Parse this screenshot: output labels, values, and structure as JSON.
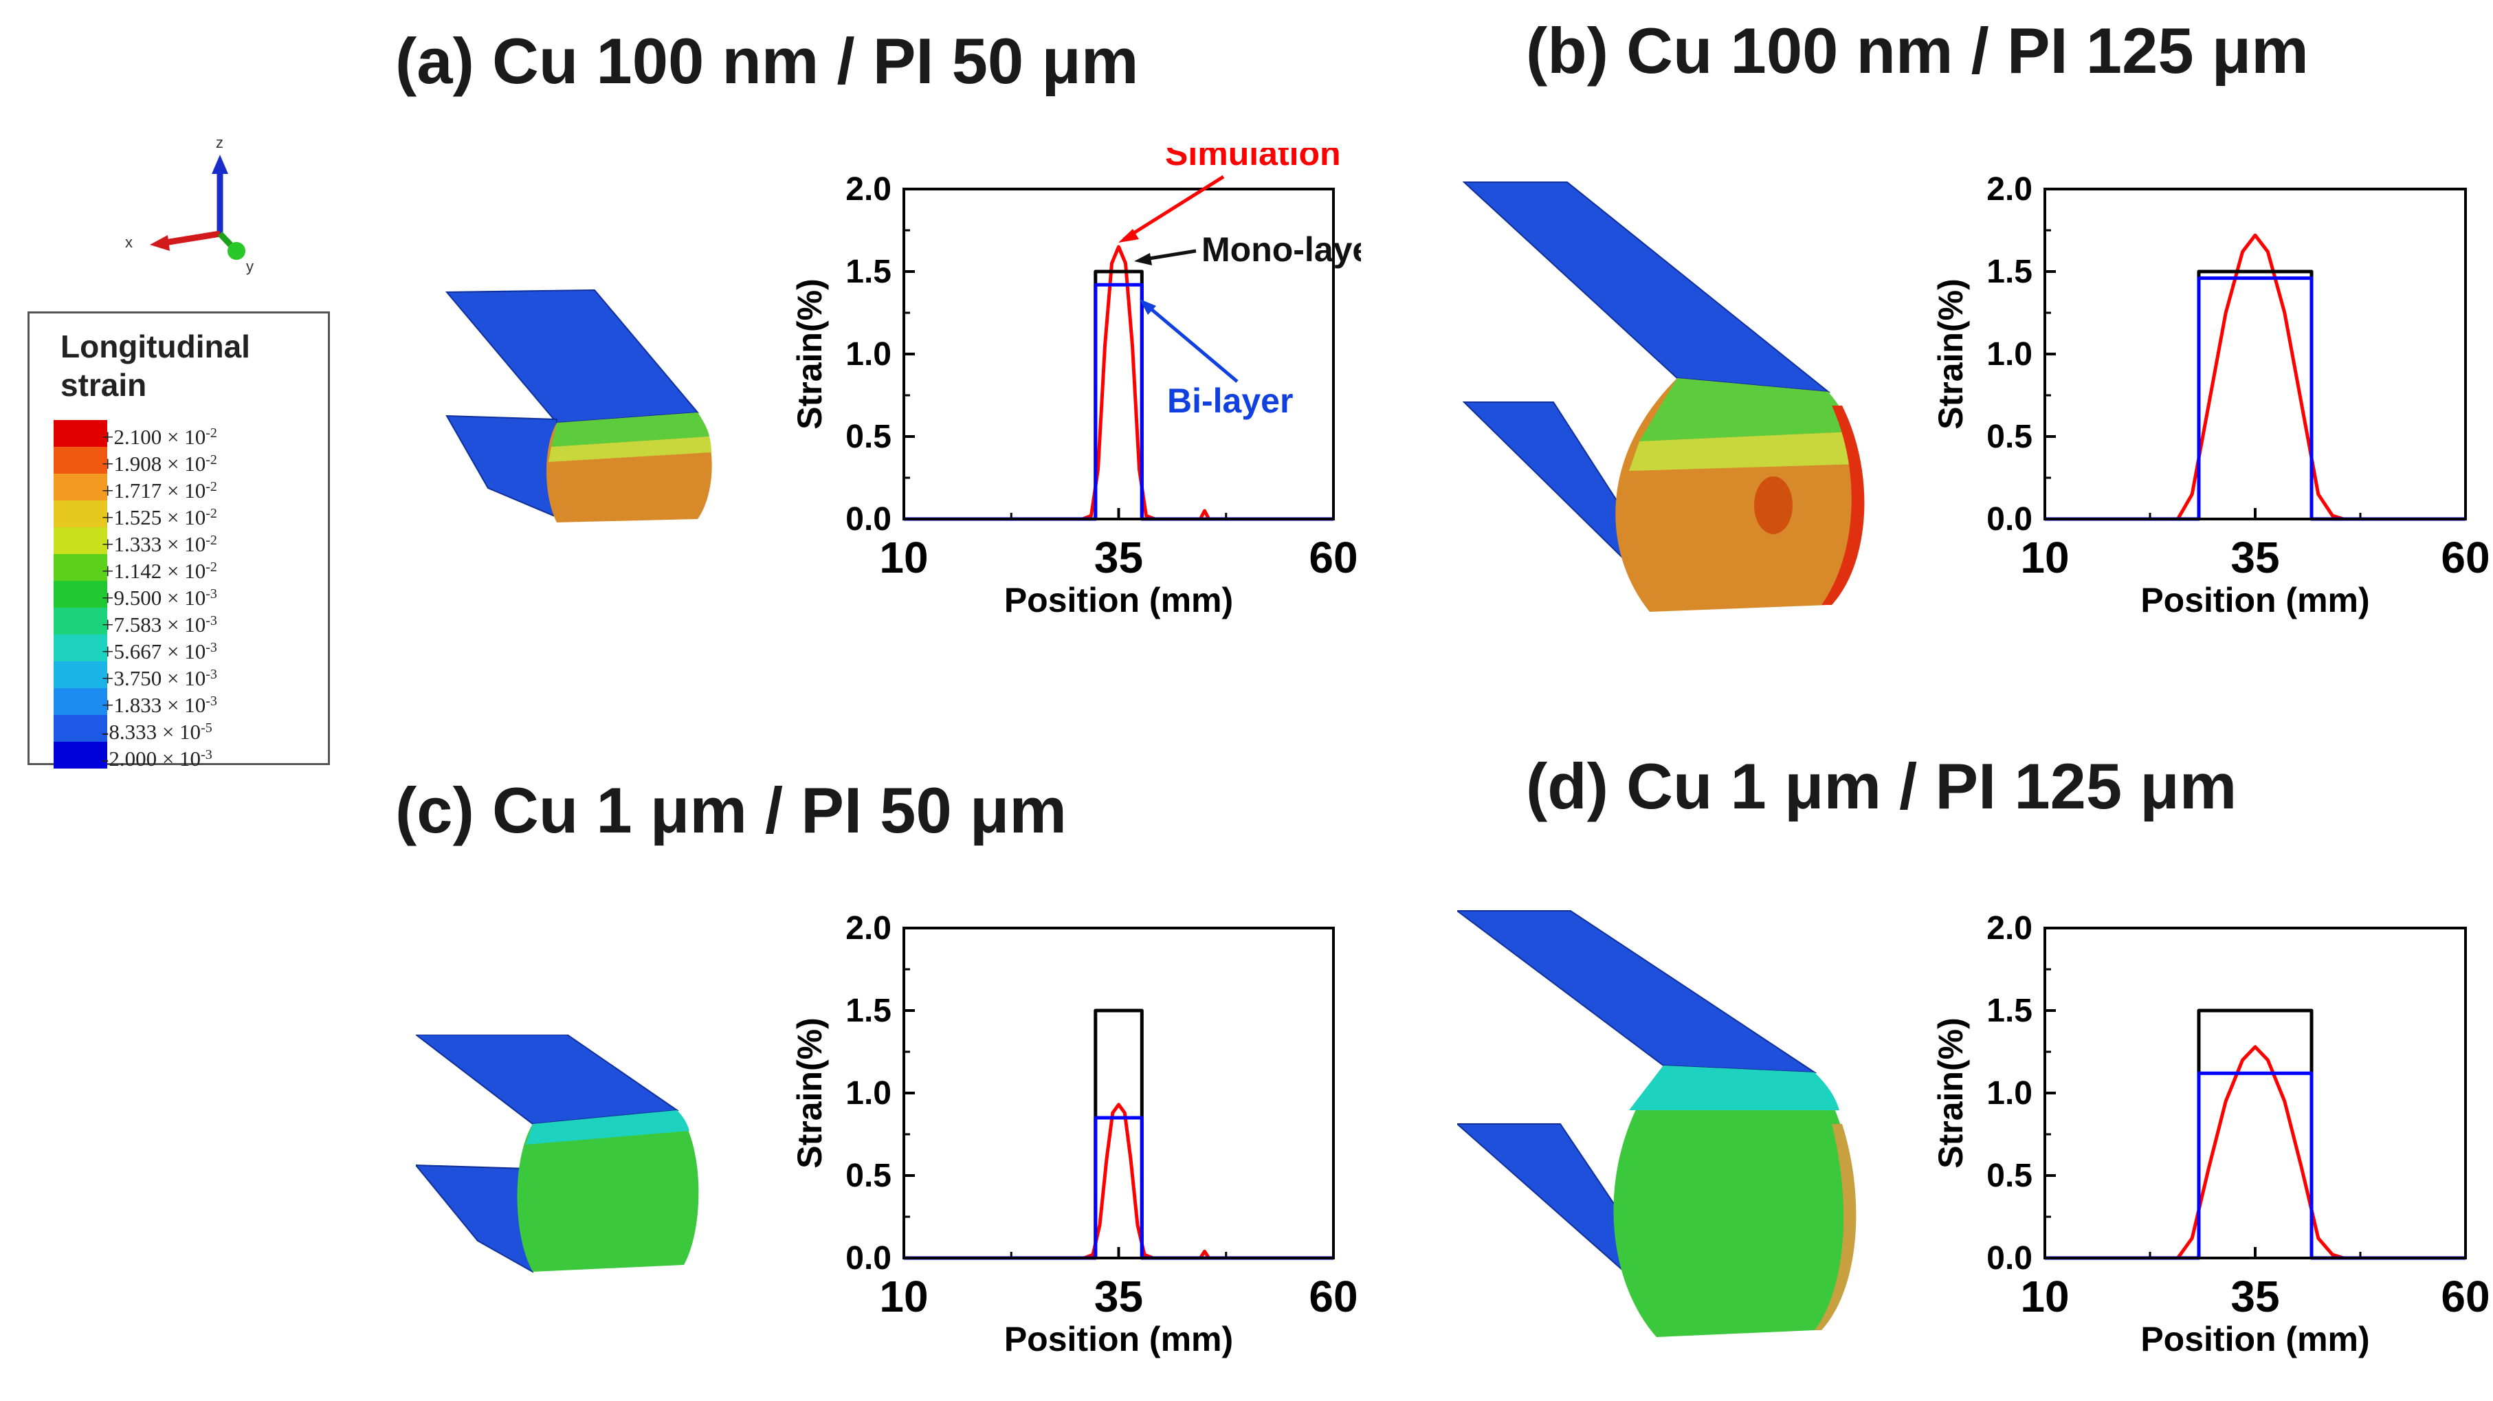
{
  "panels": [
    {
      "title": "(a) Cu 100 nm / PI 50 μm"
    },
    {
      "title": "(b) Cu 100 nm / PI 125 μm"
    },
    {
      "title": "(c) Cu 1 μm / PI 50 μm"
    },
    {
      "title": "(d) Cu 1 μm / PI 125 μm"
    }
  ],
  "axes_triad": {
    "z_label": "z",
    "x_label": "x",
    "y_label": "y"
  },
  "legend": {
    "title": "Longitudinal strain",
    "entries": [
      {
        "mantissa": "+2.100",
        "exp": "-2",
        "color": "#e00000"
      },
      {
        "mantissa": "+1.908",
        "exp": "-2",
        "color": "#f05a10"
      },
      {
        "mantissa": "+1.717",
        "exp": "-2",
        "color": "#f39a22"
      },
      {
        "mantissa": "+1.525",
        "exp": "-2",
        "color": "#e6c81e"
      },
      {
        "mantissa": "+1.333",
        "exp": "-2",
        "color": "#c8e01e"
      },
      {
        "mantissa": "+1.142",
        "exp": "-2",
        "color": "#5cd11c"
      },
      {
        "mantissa": "+9.500",
        "exp": "-3",
        "color": "#22c832"
      },
      {
        "mantissa": "+7.583",
        "exp": "-3",
        "color": "#1cd27a"
      },
      {
        "mantissa": "+5.667",
        "exp": "-3",
        "color": "#1ed2c0"
      },
      {
        "mantissa": "+3.750",
        "exp": "-3",
        "color": "#1cb4e6"
      },
      {
        "mantissa": "+1.833",
        "exp": "-3",
        "color": "#1c8cf0"
      },
      {
        "mantissa": "-8.333",
        "exp": "-5",
        "color": "#1c5ae6"
      },
      {
        "mantissa": "-2.000",
        "exp": "-3",
        "color": "#0000d8"
      }
    ]
  },
  "annotations": {
    "simulation": "Simulation",
    "mono": "Mono-layer",
    "bi": "Bi-layer"
  },
  "colors": {
    "simulation": "#ff0000",
    "mono": "#000000",
    "bi": "#0000ff",
    "mesh_blue": "#1e50dc",
    "mesh_green": "#3cc83c",
    "mesh_orange": "#d88a2a"
  },
  "chart_data": [
    {
      "type": "line",
      "panel": "a",
      "xlabel": "Position (mm)",
      "ylabel": "Strain(%)",
      "xlim": [
        10,
        60
      ],
      "ylim": [
        0,
        2.0
      ],
      "xticks": [
        "10",
        "35",
        "60"
      ],
      "yticks": [
        "0.0",
        "0.5",
        "1.0",
        "1.5",
        "2.0"
      ],
      "series": [
        {
          "name": "Simulation",
          "x": [
            10,
            30.8,
            31.8,
            32.6,
            33.4,
            34.2,
            35,
            35.8,
            36.6,
            37.4,
            38.2,
            39.2,
            44.5,
            45,
            45.5,
            60
          ],
          "y": [
            0,
            0,
            0.02,
            0.3,
            1.05,
            1.55,
            1.65,
            1.55,
            1.05,
            0.3,
            0.02,
            0,
            0,
            0.05,
            0,
            0
          ]
        },
        {
          "name": "Mono-layer",
          "x": [
            10,
            32.3,
            32.3,
            37.7,
            37.7,
            60
          ],
          "y": [
            0,
            0,
            1.5,
            1.5,
            0,
            0
          ]
        },
        {
          "name": "Bi-layer",
          "x": [
            10,
            32.3,
            32.3,
            37.7,
            37.7,
            60
          ],
          "y": [
            0,
            0,
            1.42,
            1.42,
            0,
            0
          ]
        }
      ]
    },
    {
      "type": "line",
      "panel": "b",
      "xlabel": "Position (mm)",
      "ylabel": "Strain(%)",
      "xlim": [
        10,
        60
      ],
      "ylim": [
        0,
        2.0
      ],
      "xticks": [
        "10",
        "35",
        "60"
      ],
      "yticks": [
        "0.0",
        "0.5",
        "1.0",
        "1.5",
        "2.0"
      ],
      "series": [
        {
          "name": "Simulation",
          "x": [
            10,
            25.8,
            27.5,
            29.5,
            31.5,
            33.5,
            35,
            36.5,
            38.5,
            40.5,
            42.5,
            44.2,
            45.5,
            48,
            60
          ],
          "y": [
            0,
            0,
            0.15,
            0.7,
            1.25,
            1.62,
            1.72,
            1.62,
            1.25,
            0.7,
            0.15,
            0.02,
            0,
            0,
            0
          ]
        },
        {
          "name": "Mono-layer",
          "x": [
            10,
            28.3,
            28.3,
            41.7,
            41.7,
            60
          ],
          "y": [
            0,
            0,
            1.5,
            1.5,
            0,
            0
          ]
        },
        {
          "name": "Bi-layer",
          "x": [
            10,
            28.3,
            28.3,
            41.7,
            41.7,
            60
          ],
          "y": [
            0,
            0,
            1.46,
            1.46,
            0,
            0
          ]
        }
      ]
    },
    {
      "type": "line",
      "panel": "c",
      "xlabel": "Position (mm)",
      "ylabel": "Strain(%)",
      "xlim": [
        10,
        60
      ],
      "ylim": [
        0,
        2.0
      ],
      "xticks": [
        "10",
        "35",
        "60"
      ],
      "yticks": [
        "0.0",
        "0.5",
        "1.0",
        "1.5",
        "2.0"
      ],
      "series": [
        {
          "name": "Simulation",
          "x": [
            10,
            31,
            32,
            32.8,
            33.6,
            34.3,
            35,
            35.7,
            36.4,
            37.2,
            38,
            39,
            44.5,
            45,
            45.5,
            60
          ],
          "y": [
            0,
            0,
            0.02,
            0.2,
            0.6,
            0.88,
            0.93,
            0.88,
            0.6,
            0.2,
            0.02,
            0,
            0,
            0.04,
            0,
            0
          ]
        },
        {
          "name": "Mono-layer",
          "x": [
            10,
            32.3,
            32.3,
            37.7,
            37.7,
            60
          ],
          "y": [
            0,
            0,
            1.5,
            1.5,
            0,
            0
          ]
        },
        {
          "name": "Bi-layer",
          "x": [
            10,
            32.3,
            32.3,
            37.7,
            37.7,
            60
          ],
          "y": [
            0,
            0,
            0.85,
            0.85,
            0,
            0
          ]
        }
      ]
    },
    {
      "type": "line",
      "panel": "d",
      "xlabel": "Position (mm)",
      "ylabel": "Strain(%)",
      "xlim": [
        10,
        60
      ],
      "ylim": [
        0,
        2.0
      ],
      "xticks": [
        "10",
        "35",
        "60"
      ],
      "yticks": [
        "0.0",
        "0.5",
        "1.0",
        "1.5",
        "2.0"
      ],
      "series": [
        {
          "name": "Simulation",
          "x": [
            10,
            25.8,
            27.5,
            29.5,
            31.5,
            33.5,
            35,
            36.5,
            38.5,
            40.5,
            42.5,
            44.2,
            45.5,
            48,
            60
          ],
          "y": [
            0,
            0,
            0.12,
            0.55,
            0.95,
            1.2,
            1.28,
            1.2,
            0.95,
            0.55,
            0.12,
            0.02,
            0,
            0,
            0
          ]
        },
        {
          "name": "Mono-layer",
          "x": [
            10,
            28.3,
            28.3,
            41.7,
            41.7,
            60
          ],
          "y": [
            0,
            0,
            1.5,
            1.5,
            0,
            0
          ]
        },
        {
          "name": "Bi-layer",
          "x": [
            10,
            28.3,
            28.3,
            41.7,
            41.7,
            60
          ],
          "y": [
            0,
            0,
            1.12,
            1.12,
            0,
            0
          ]
        }
      ]
    }
  ]
}
